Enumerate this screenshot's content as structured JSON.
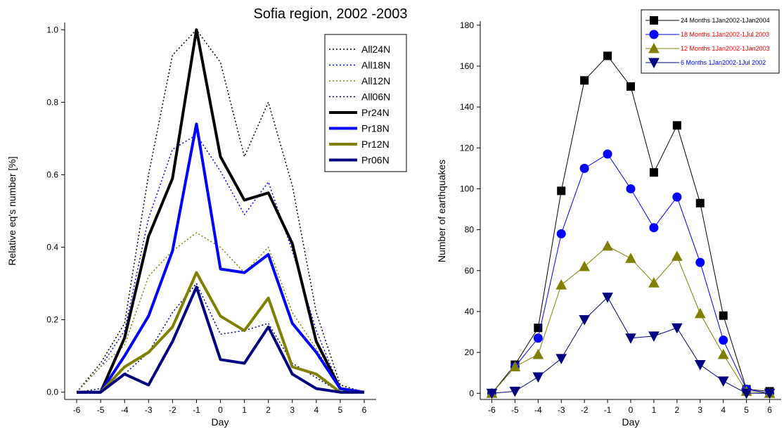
{
  "title": "Sofia region, 2002 -2003",
  "chart_data": [
    {
      "type": "line",
      "xlabel": "Day",
      "ylabel": "Relative eq's number [%]",
      "xlim": [
        -6.5,
        6.5
      ],
      "ylim": [
        -0.02,
        1.02
      ],
      "x": [
        -6,
        -5,
        -4,
        -3,
        -2,
        -1,
        0,
        1,
        2,
        3,
        4,
        5,
        6
      ],
      "xticks": [
        -6,
        -5,
        -4,
        -3,
        -2,
        -1,
        0,
        1,
        2,
        3,
        4,
        5,
        6
      ],
      "yticks": [
        0.0,
        0.2,
        0.4,
        0.6,
        0.8,
        1.0
      ],
      "ytick_labels": [
        "0.0",
        "0.2",
        "0.4",
        "0.6",
        "0.8",
        "1.0"
      ],
      "legend_position": "top-right",
      "series": [
        {
          "name": "All24N",
          "color": "#000000",
          "style": "dotted",
          "values": [
            0.0,
            0.08,
            0.19,
            0.6,
            0.93,
            1.0,
            0.91,
            0.65,
            0.8,
            0.57,
            0.22,
            0.02,
            0.0
          ]
        },
        {
          "name": "All18N",
          "color": "#0000ff",
          "style": "dotted",
          "values": [
            0.0,
            0.07,
            0.17,
            0.48,
            0.67,
            0.71,
            0.61,
            0.49,
            0.58,
            0.39,
            0.17,
            0.01,
            0.0
          ]
        },
        {
          "name": "All12N",
          "color": "#808000",
          "style": "dotted",
          "values": [
            0.0,
            0.07,
            0.13,
            0.32,
            0.39,
            0.44,
            0.4,
            0.33,
            0.4,
            0.22,
            0.12,
            0.01,
            0.0
          ]
        },
        {
          "name": "All06N",
          "color": "#000080",
          "style": "dotted",
          "values": [
            0.0,
            0.01,
            0.05,
            0.11,
            0.22,
            0.3,
            0.16,
            0.17,
            0.19,
            0.08,
            0.04,
            0.0,
            0.0
          ]
        },
        {
          "name": "Pr24N",
          "color": "#000000",
          "style": "solid",
          "values": [
            0.0,
            0.0,
            0.15,
            0.43,
            0.59,
            1.0,
            0.65,
            0.53,
            0.55,
            0.41,
            0.14,
            0.01,
            0.0
          ]
        },
        {
          "name": "Pr18N",
          "color": "#0000ff",
          "style": "solid",
          "values": [
            0.0,
            0.0,
            0.1,
            0.21,
            0.39,
            0.74,
            0.34,
            0.33,
            0.38,
            0.19,
            0.11,
            0.01,
            0.0
          ]
        },
        {
          "name": "Pr12N",
          "color": "#808000",
          "style": "solid",
          "values": [
            0.0,
            0.0,
            0.07,
            0.11,
            0.18,
            0.33,
            0.21,
            0.17,
            0.26,
            0.07,
            0.05,
            0.0,
            0.0
          ]
        },
        {
          "name": "Pr06N",
          "color": "#000080",
          "style": "solid",
          "values": [
            0.0,
            0.0,
            0.05,
            0.02,
            0.14,
            0.29,
            0.09,
            0.08,
            0.18,
            0.05,
            0.01,
            0.0,
            0.0
          ]
        }
      ]
    },
    {
      "type": "line",
      "xlabel": "Day",
      "ylabel": "Number of earthquakes",
      "xlim": [
        -6.5,
        6.5
      ],
      "ylim": [
        -3,
        182
      ],
      "x": [
        -6,
        -5,
        -4,
        -3,
        -2,
        -1,
        0,
        1,
        2,
        3,
        4,
        5,
        6
      ],
      "xticks": [
        -6,
        -5,
        -4,
        -3,
        -2,
        -1,
        0,
        1,
        2,
        3,
        4,
        5,
        6
      ],
      "yticks": [
        0,
        20,
        40,
        60,
        80,
        100,
        120,
        140,
        160,
        180
      ],
      "ytick_labels": [
        "0",
        "20",
        "40",
        "60",
        "80",
        "100",
        "120",
        "140",
        "160",
        "180"
      ],
      "legend_position": "top-right",
      "series": [
        {
          "name": "24 Months 1Jan2002-1Jan2004",
          "color": "#000000",
          "text_color": "#000000",
          "marker": "square",
          "values": [
            0,
            14,
            32,
            99,
            153,
            165,
            150,
            108,
            131,
            93,
            38,
            2,
            1
          ]
        },
        {
          "name": "18 Months 1Jan2002-1Jul 2003",
          "color": "#0000ff",
          "text_color": "#ff0000",
          "marker": "circle",
          "values": [
            0,
            13,
            27,
            78,
            110,
            117,
            100,
            81,
            96,
            64,
            26,
            2,
            0
          ]
        },
        {
          "name": "12 Months 1Jan2002-1Jan2003",
          "color": "#808000",
          "text_color": "#ff0000",
          "marker": "triangle-up",
          "values": [
            0,
            13,
            19,
            53,
            62,
            72,
            66,
            54,
            67,
            39,
            19,
            1,
            0
          ]
        },
        {
          "name": "6 Months 1Jan2002-1Jul 2002",
          "color": "#000080",
          "text_color": "#0000ff",
          "marker": "triangle-down",
          "values": [
            0,
            1,
            8,
            17,
            36,
            47,
            27,
            28,
            32,
            14,
            6,
            0,
            0
          ]
        }
      ]
    }
  ]
}
